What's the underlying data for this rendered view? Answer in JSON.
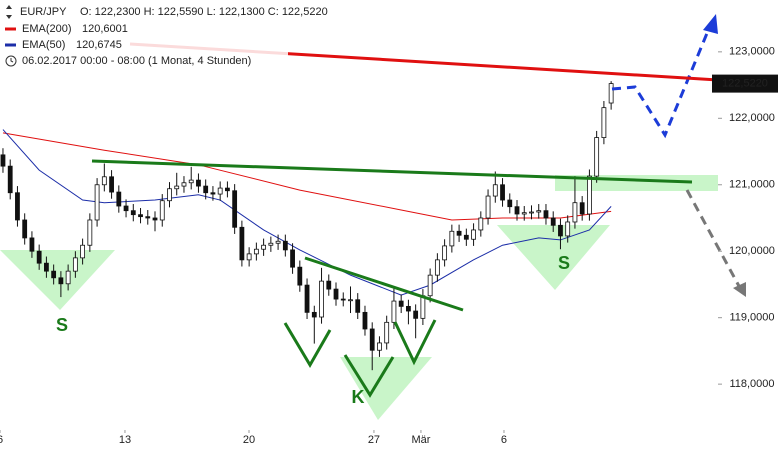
{
  "chart_data": {
    "type": "candlestick",
    "symbol": "EUR/JPY",
    "quote": "O: 122,2300  H: 122,5590  L: 122,1300  C: 122,5220",
    "period": "06.02.2017 00:00 - 08:00  (1 Monat, 4 Stunden)",
    "last_price_label": "122,5220",
    "annotations": [
      "S",
      "K",
      "S"
    ],
    "up_color": "#ffffff",
    "down_color": "#111111",
    "open": [
      121.45,
      121.28,
      120.88,
      120.47,
      120.2,
      120.0,
      119.82,
      119.7,
      119.6,
      119.51,
      119.7,
      119.9,
      120.09,
      120.47,
      121.0,
      121.12,
      120.89,
      120.68,
      120.61,
      120.55,
      120.52,
      120.5,
      120.47,
      120.76,
      120.94,
      120.98,
      121.03,
      121.07,
      120.98,
      120.88,
      120.86,
      120.95,
      120.91,
      120.36,
      119.87,
      119.96,
      120.03,
      120.09,
      120.12,
      120.15,
      120.02,
      119.76,
      119.49,
      119.08,
      119.01,
      119.55,
      119.43,
      119.28,
      119.27,
      119.27,
      119.08,
      118.83,
      118.51,
      118.62,
      118.93,
      119.25,
      119.17,
      119.1,
      118.99,
      119.33,
      119.64,
      119.87,
      120.08,
      120.3,
      120.24,
      120.18,
      120.32,
      120.5,
      120.83,
      121.0,
      120.77,
      120.67,
      120.56,
      120.58,
      120.59,
      120.61,
      120.5,
      120.39,
      120.23,
      120.44,
      120.73,
      120.56,
      121.13,
      121.71,
      122.23
    ],
    "high": [
      121.55,
      121.38,
      120.98,
      120.57,
      120.3,
      120.1,
      119.92,
      119.8,
      119.7,
      119.8,
      120.0,
      120.19,
      120.57,
      121.1,
      121.32,
      121.22,
      120.99,
      120.78,
      120.71,
      120.65,
      120.62,
      120.6,
      120.86,
      121.04,
      121.18,
      121.13,
      121.27,
      121.17,
      121.08,
      120.98,
      121.05,
      121.05,
      121.01,
      120.46,
      120.06,
      120.13,
      120.19,
      120.22,
      120.25,
      120.25,
      120.12,
      119.86,
      119.59,
      119.18,
      119.75,
      119.65,
      119.53,
      119.38,
      119.47,
      119.37,
      119.18,
      118.93,
      118.72,
      119.03,
      119.45,
      119.35,
      119.27,
      119.2,
      119.43,
      119.74,
      119.97,
      120.18,
      120.4,
      120.4,
      120.34,
      120.42,
      120.6,
      120.93,
      121.2,
      121.1,
      120.87,
      120.77,
      120.68,
      120.69,
      120.71,
      120.71,
      120.6,
      120.49,
      120.54,
      121.13,
      120.83,
      121.23,
      121.81,
      122.26,
      122.559
    ],
    "low": [
      121.18,
      120.78,
      120.37,
      120.1,
      119.9,
      119.72,
      119.6,
      119.5,
      119.31,
      119.41,
      119.6,
      119.8,
      119.99,
      120.37,
      120.9,
      120.79,
      120.58,
      120.51,
      120.45,
      120.42,
      120.4,
      120.3,
      120.37,
      120.66,
      120.84,
      120.88,
      120.93,
      120.88,
      120.78,
      120.76,
      120.76,
      120.81,
      120.26,
      119.77,
      119.77,
      119.86,
      119.93,
      119.99,
      120.02,
      119.92,
      119.66,
      119.39,
      118.98,
      118.61,
      118.91,
      119.33,
      119.18,
      119.17,
      119.07,
      118.98,
      118.73,
      118.21,
      118.41,
      118.52,
      118.83,
      119.07,
      118.9,
      118.69,
      118.89,
      119.23,
      119.54,
      119.77,
      119.98,
      120.14,
      120.08,
      120.08,
      120.22,
      120.4,
      120.73,
      120.67,
      120.57,
      120.46,
      120.46,
      120.48,
      120.49,
      120.4,
      120.29,
      120.03,
      120.13,
      120.34,
      120.46,
      120.46,
      121.03,
      121.61,
      122.13
    ],
    "close": [
      121.28,
      120.88,
      120.47,
      120.2,
      120.0,
      119.82,
      119.7,
      119.6,
      119.51,
      119.7,
      119.9,
      120.09,
      120.47,
      121.0,
      121.12,
      120.89,
      120.68,
      120.61,
      120.55,
      120.52,
      120.5,
      120.47,
      120.76,
      120.94,
      120.98,
      121.03,
      121.07,
      120.98,
      120.88,
      120.86,
      120.95,
      120.91,
      120.36,
      119.87,
      119.96,
      120.03,
      120.09,
      120.12,
      120.15,
      120.02,
      119.76,
      119.49,
      119.08,
      119.01,
      119.55,
      119.43,
      119.28,
      119.27,
      119.27,
      119.08,
      118.83,
      118.51,
      118.62,
      118.93,
      119.25,
      119.17,
      119.1,
      118.99,
      119.33,
      119.64,
      119.87,
      120.08,
      120.3,
      120.24,
      120.18,
      120.32,
      120.5,
      120.83,
      121.0,
      120.77,
      120.67,
      120.56,
      120.58,
      120.59,
      120.61,
      120.5,
      120.39,
      120.23,
      120.44,
      120.73,
      120.56,
      121.13,
      121.71,
      122.16,
      122.522
    ],
    "overlays": [
      {
        "name": "EMA(200)",
        "value_label": "120,6001",
        "color": "#e01010",
        "x": [
          0,
          14,
          27,
          41,
          55,
          62,
          69,
          77,
          84
        ],
        "values": [
          121.78,
          121.52,
          121.3,
          120.92,
          120.62,
          120.47,
          120.5,
          120.5,
          120.6001
        ]
      },
      {
        "name": "EMA(50)",
        "value_label": "120,6745",
        "color": "#1c2ea8",
        "x": [
          0,
          5,
          11,
          14,
          21,
          27,
          30,
          36,
          41,
          48,
          55,
          59,
          65,
          69,
          74,
          77,
          81,
          84
        ],
        "values": [
          121.83,
          121.22,
          120.77,
          120.73,
          120.77,
          120.85,
          120.77,
          120.32,
          120.02,
          119.64,
          119.34,
          119.49,
          119.87,
          120.09,
          120.2,
          120.17,
          120.32,
          120.6745
        ]
      }
    ],
    "xlim": [
      -0.41,
      98.76
    ],
    "xticks": [
      {
        "value": -0.41,
        "label": "6"
      },
      {
        "value": 16.85,
        "label": "13"
      },
      {
        "value": 33.98,
        "label": "20"
      },
      {
        "value": 51.24,
        "label": "27"
      },
      {
        "value": 57.73,
        "label": "Mär"
      },
      {
        "value": 69.2,
        "label": "6"
      }
    ],
    "ylim": [
      117.31,
      123.78
    ],
    "yticks": [
      {
        "value": 118,
        "label": "118,0000"
      },
      {
        "value": 119,
        "label": "119,0000"
      },
      {
        "value": 120,
        "label": "120,0000"
      },
      {
        "value": 121,
        "label": "121,0000"
      },
      {
        "value": 122,
        "label": "122,0000"
      },
      {
        "value": 123,
        "label": "123,0000"
      }
    ]
  }
}
